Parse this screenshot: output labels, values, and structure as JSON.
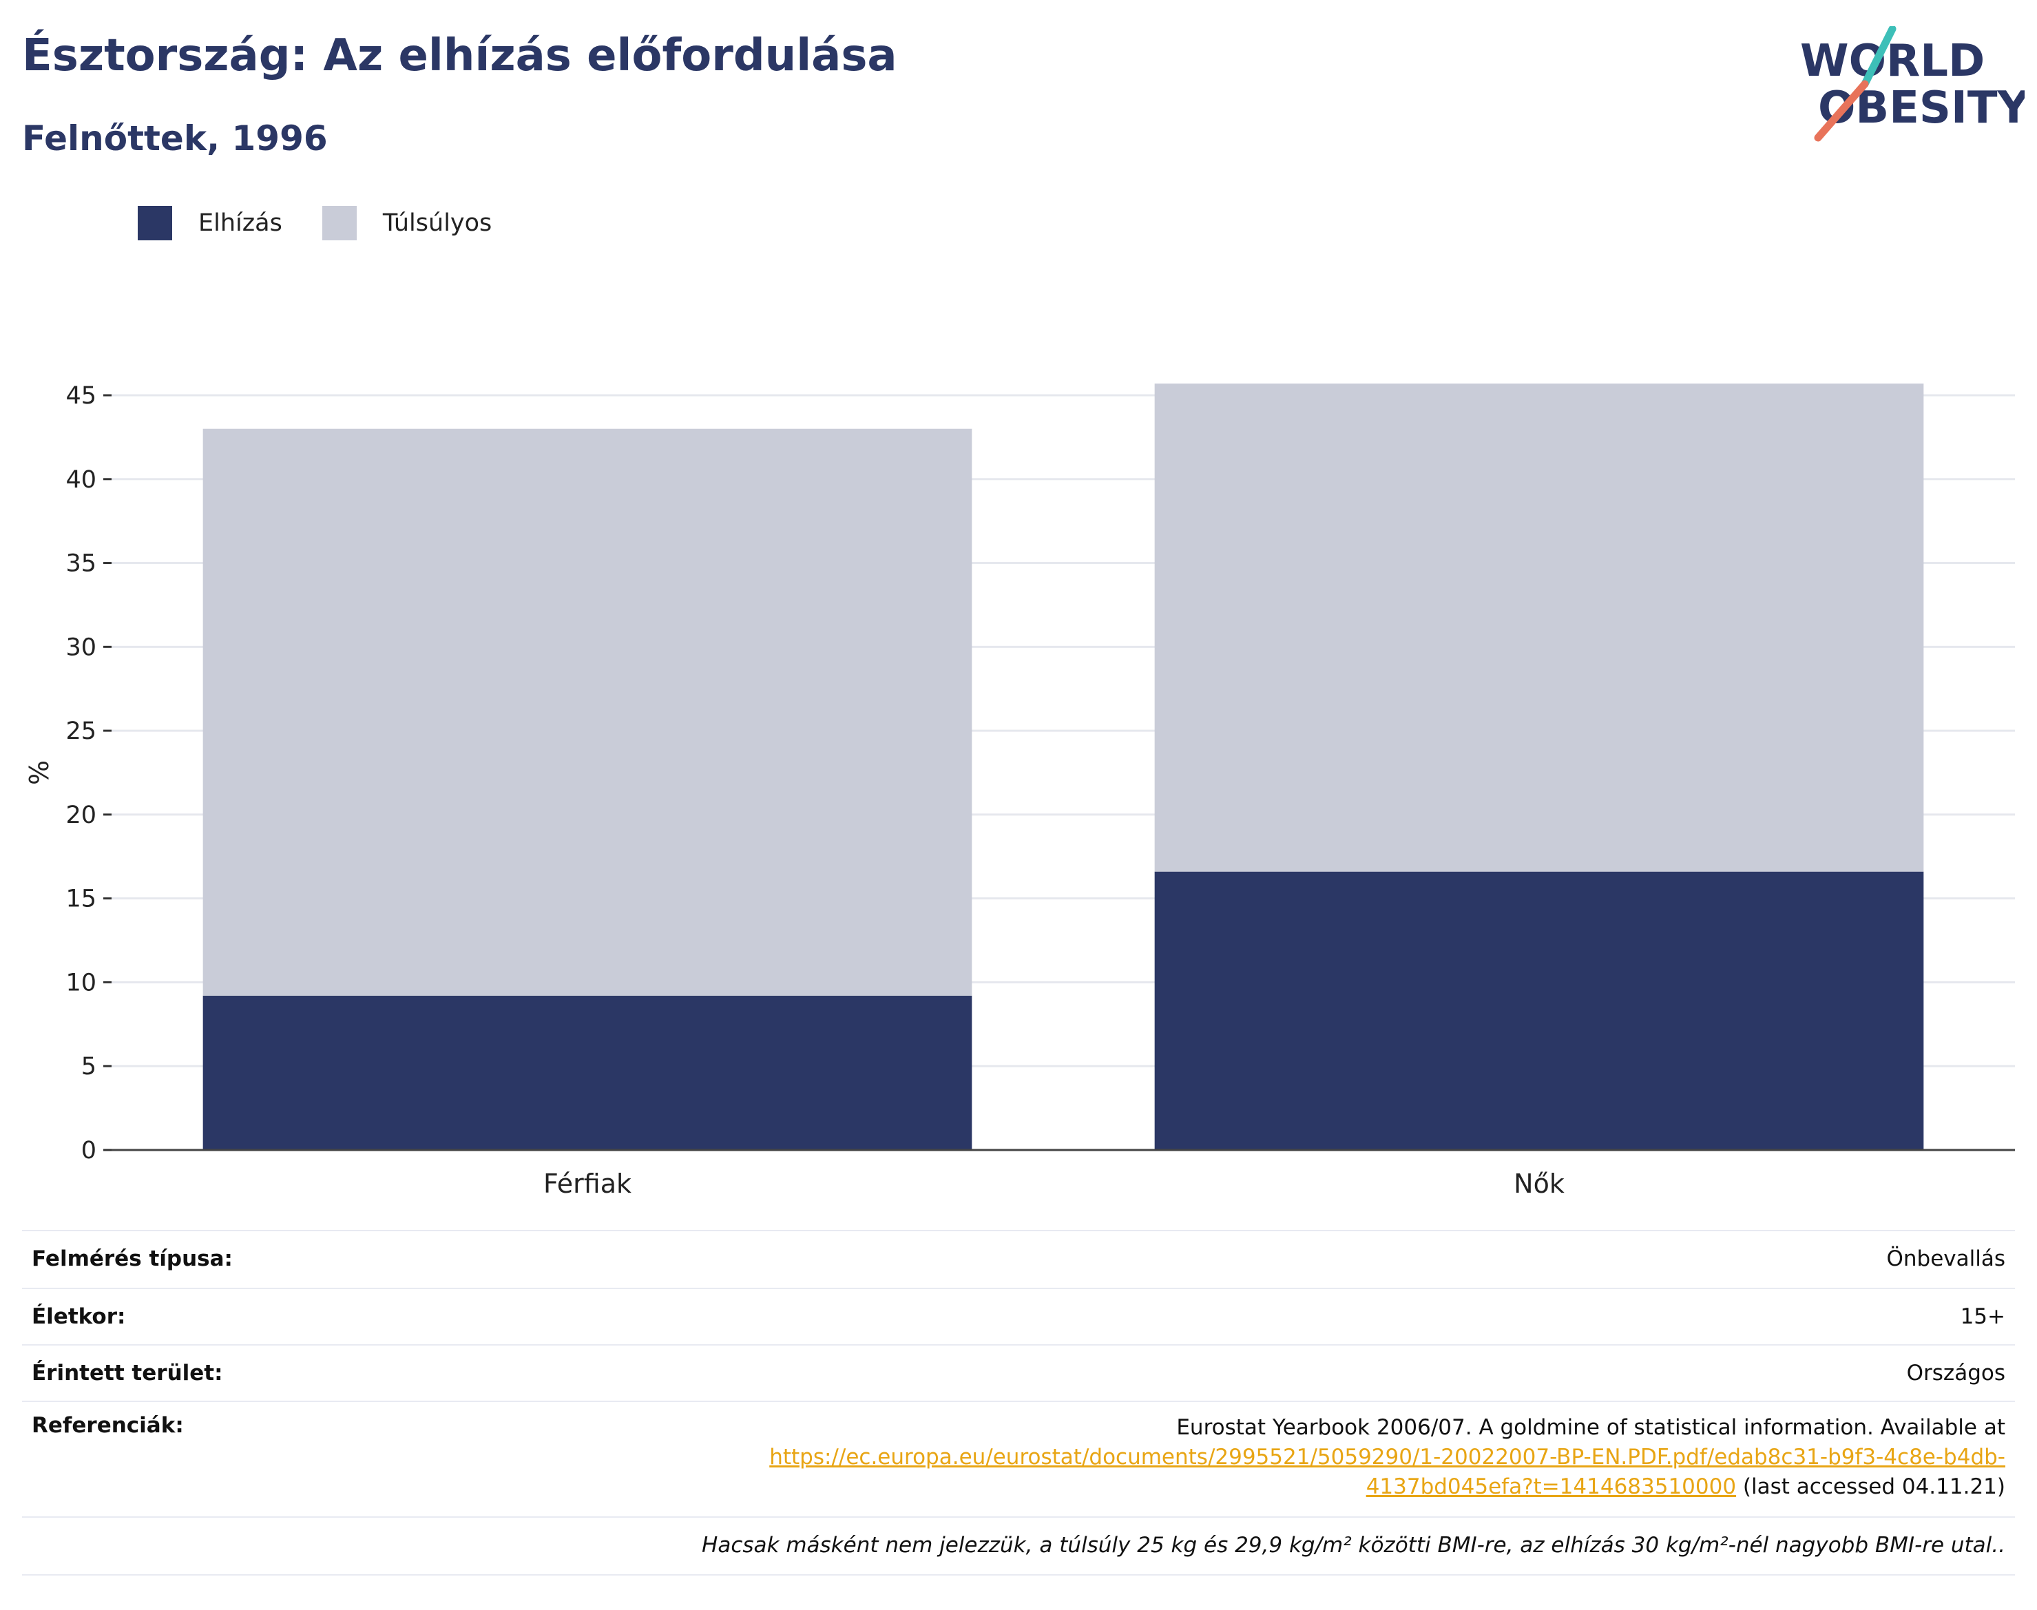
{
  "header": {
    "title": "Észtország: Az elhízás előfordulása",
    "subtitle": "Felnőttek, 1996"
  },
  "logo": {
    "line1": "WORLD",
    "line2": "OBESITY",
    "colors": {
      "text": "#2b3765",
      "slash_top": "#3dbfb8",
      "slash_bottom": "#e8735a"
    }
  },
  "legend": [
    {
      "label": "Elhízás",
      "color": "#2b3765"
    },
    {
      "label": "Túlsúlyos",
      "color": "#c9ccd8"
    }
  ],
  "chart_data": {
    "type": "bar",
    "stacked": true,
    "categories": [
      "Férfiak",
      "Nők"
    ],
    "series": [
      {
        "name": "Elhízás",
        "values": [
          9.2,
          16.6
        ],
        "color": "#2b3765"
      },
      {
        "name": "Túlsúlyos",
        "values": [
          33.8,
          29.1
        ],
        "color": "#c9ccd8"
      }
    ],
    "ylabel": "%",
    "ylim": [
      0,
      45
    ],
    "yticks": [
      "0",
      "5",
      "10",
      "15",
      "20",
      "25",
      "30",
      "35",
      "40",
      "45"
    ],
    "grid": true,
    "legend_position": "top-left"
  },
  "info": {
    "survey_type_label": "Felmérés típusa:",
    "survey_type_value": "Önbevallás",
    "age_label": "Életkor:",
    "age_value": "15+",
    "area_label": "Érintett terület:",
    "area_value": "Országos",
    "refs_label": "Referenciák:",
    "refs_text": "Eurostat Yearbook 2006/07. A goldmine of statistical information. Available at",
    "refs_link_part1": "https://ec.europa.eu/eurostat/documents/2995521/5059290/1-20022007-BP-EN.PDF.pdf/edab8c31-b9f3-4c8e-b4db-",
    "refs_link_part2": "4137bd045efa?t=1414683510000",
    "refs_accessed": " (last accessed 04.11.21)",
    "note": "Hacsak másként nem jelezzük, a túlsúly 25 kg és 29,9 kg/m² közötti BMI-re, az elhízás 30 kg/m²-nél nagyobb BMI-re utal.."
  }
}
